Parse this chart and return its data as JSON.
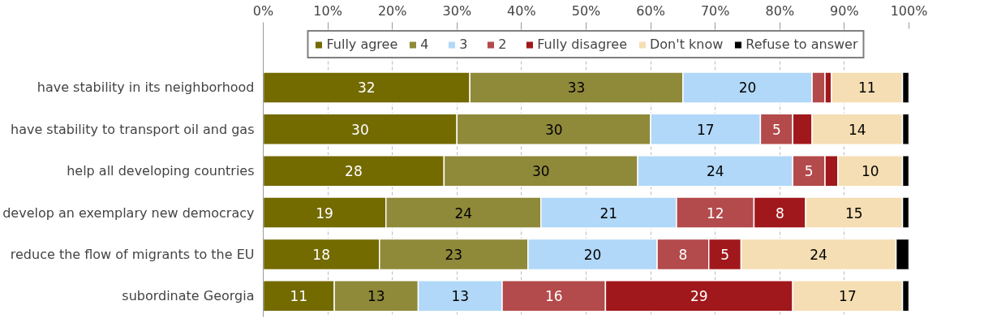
{
  "chart_data": {
    "type": "bar",
    "orientation": "horizontal",
    "stacked": true,
    "categories": [
      "have stability in its neighborhood",
      "have stability to transport oil and gas",
      "help all developing countries",
      "develop an exemplary new democracy",
      "reduce the flow of migrants to the EU",
      "subordinate Georgia"
    ],
    "series": [
      {
        "name": "Fully agree",
        "color": "#736a00",
        "values": [
          32,
          30,
          28,
          19,
          18,
          11
        ],
        "value_labels": [
          "32",
          "30",
          "28",
          "19",
          "18",
          "11"
        ]
      },
      {
        "name": "4",
        "color": "#8f893a",
        "values": [
          33,
          30,
          30,
          24,
          23,
          13
        ],
        "value_labels": [
          "33",
          "30",
          "30",
          "24",
          "23",
          "13"
        ]
      },
      {
        "name": "3",
        "color": "#b1d8f8",
        "values": [
          20,
          17,
          24,
          21,
          20,
          13
        ],
        "value_labels": [
          "20",
          "17",
          "24",
          "21",
          "20",
          "13"
        ]
      },
      {
        "name": "2",
        "color": "#b34a4b",
        "values": [
          2,
          5,
          5,
          12,
          8,
          16
        ],
        "value_labels": [
          null,
          "5",
          "5",
          "12",
          "8",
          "16"
        ]
      },
      {
        "name": "Fully disagree",
        "color": "#a0181c",
        "values": [
          1,
          3,
          2,
          8,
          5,
          29
        ],
        "value_labels": [
          null,
          null,
          null,
          "8",
          "5",
          "29"
        ]
      },
      {
        "name": "Don't know",
        "color": "#f5deb3",
        "values": [
          11,
          14,
          10,
          15,
          24,
          17
        ],
        "value_labels": [
          "11",
          "14",
          "10",
          "15",
          "24",
          "17"
        ]
      },
      {
        "name": "Refuse to answer",
        "color": "#000000",
        "values": [
          1,
          1,
          1,
          1,
          2,
          1
        ],
        "value_labels": [
          null,
          null,
          null,
          null,
          null,
          null
        ]
      }
    ],
    "xlim": [
      0,
      100
    ],
    "xticks": [
      {
        "value": 0,
        "label": "0%"
      },
      {
        "value": 10,
        "label": "10%"
      },
      {
        "value": 20,
        "label": "20%"
      },
      {
        "value": 30,
        "label": "30%"
      },
      {
        "value": 40,
        "label": "40%"
      },
      {
        "value": 50,
        "label": "50%"
      },
      {
        "value": 60,
        "label": "60%"
      },
      {
        "value": 70,
        "label": "70%"
      },
      {
        "value": 80,
        "label": "80%"
      },
      {
        "value": 90,
        "label": "90%"
      },
      {
        "value": 100,
        "label": "100%"
      }
    ],
    "grid": "x",
    "legend": "top"
  }
}
